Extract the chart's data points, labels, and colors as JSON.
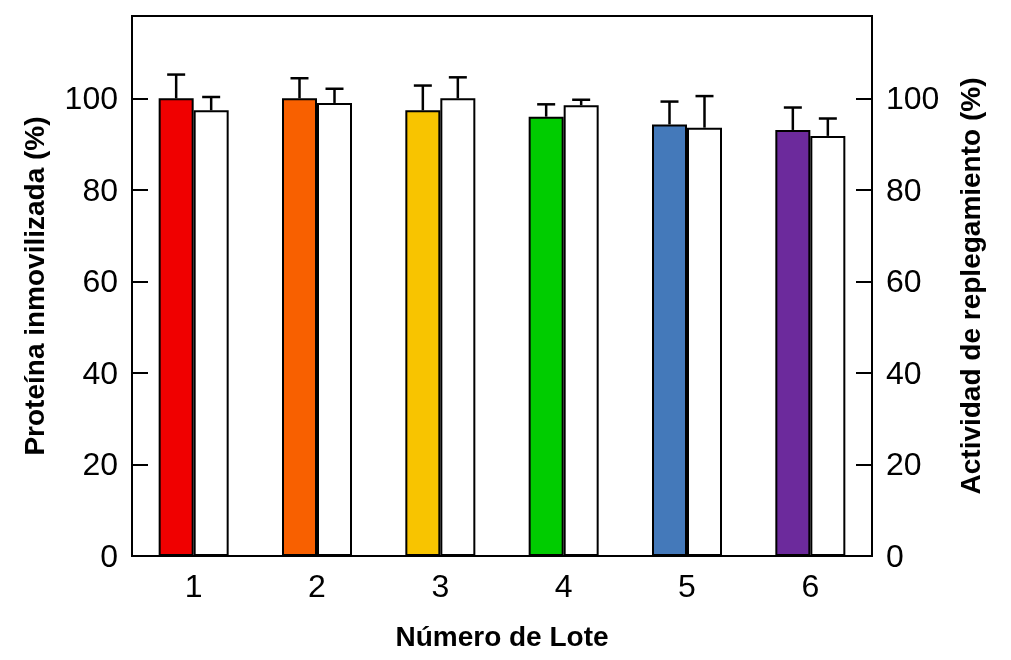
{
  "chart_data": {
    "type": "bar",
    "xlabel": "Número de Lote",
    "ylabel": "Proteína inmovilizada (%)",
    "y2label": "Actividad de replegamiento (%)",
    "categories": [
      "1",
      "2",
      "3",
      "4",
      "5",
      "6"
    ],
    "series": [
      {
        "colors": [
          "#f00000",
          "#f86000",
          "#f8c400",
          "#00cc00",
          "#4479ba",
          "#6c2a9c"
        ],
        "values": [
          100,
          100,
          97.4,
          96,
          94.3,
          93.1
        ],
        "errors": [
          [
            100,
            105.2
          ],
          [
            100,
            104.4
          ],
          [
            97.4,
            102.8
          ],
          [
            96,
            98.7
          ],
          [
            94.3,
            99.3
          ],
          [
            93.1,
            98
          ]
        ]
      },
      {
        "color": "#ffffff",
        "axis": "y2",
        "values": [
          97.4,
          99,
          100,
          98.5,
          93.6,
          91.8
        ],
        "errors": [
          [
            97.4,
            100.3
          ],
          [
            99,
            102.1
          ],
          [
            100,
            104.6
          ],
          [
            98.5,
            99.7
          ],
          [
            93.6,
            100.5
          ],
          [
            91.8,
            95.6
          ]
        ]
      }
    ],
    "ylim": [
      0,
      118
    ],
    "yticks": [
      0,
      20,
      40,
      60,
      80,
      100
    ],
    "y2lim": [
      0,
      118
    ],
    "y2ticks": [
      0,
      20,
      40,
      60,
      80,
      100
    ]
  }
}
